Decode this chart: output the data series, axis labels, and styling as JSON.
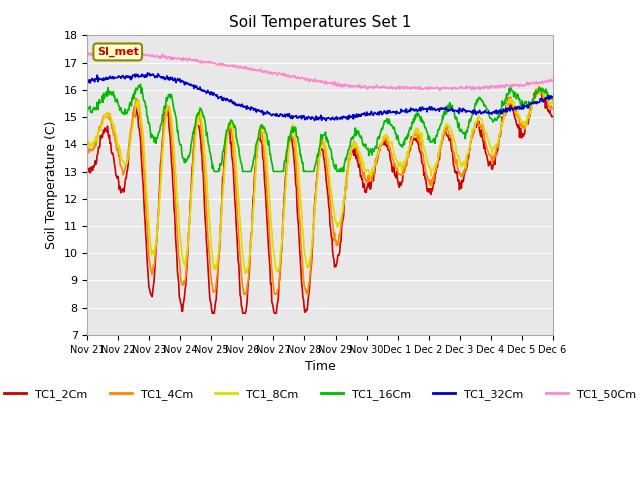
{
  "title": "Soil Temperatures Set 1",
  "xlabel": "Time",
  "ylabel": "Soil Temperature (C)",
  "ylim": [
    7.0,
    18.0
  ],
  "yticks": [
    7.0,
    8.0,
    9.0,
    10.0,
    11.0,
    12.0,
    13.0,
    14.0,
    15.0,
    16.0,
    17.0,
    18.0
  ],
  "xtick_labels": [
    "Nov 21",
    "Nov 22",
    "Nov 23",
    "Nov 24",
    "Nov 25",
    "Nov 26",
    "Nov 27",
    "Nov 28",
    "Nov 29",
    "Nov 30",
    "Dec 1",
    "Dec 2",
    "Dec 3",
    "Dec 4",
    "Dec 5",
    "Dec 6"
  ],
  "bg_color": "#e8e8e8",
  "fig_color": "#ffffff",
  "series": {
    "TC1_2Cm": {
      "color": "#cc0000",
      "lw": 1.2
    },
    "TC1_4Cm": {
      "color": "#ff8800",
      "lw": 1.2
    },
    "TC1_8Cm": {
      "color": "#dddd00",
      "lw": 1.2
    },
    "TC1_16Cm": {
      "color": "#00bb00",
      "lw": 1.2
    },
    "TC1_32Cm": {
      "color": "#0000cc",
      "lw": 1.2
    },
    "TC1_50Cm": {
      "color": "#ff88cc",
      "lw": 1.2
    }
  },
  "simet_label": "SI_met",
  "simet_color": "#cc0000",
  "simet_bg": "#ffffcc",
  "simet_border": "#888800",
  "n_days": 15,
  "pts_per_day": 48
}
